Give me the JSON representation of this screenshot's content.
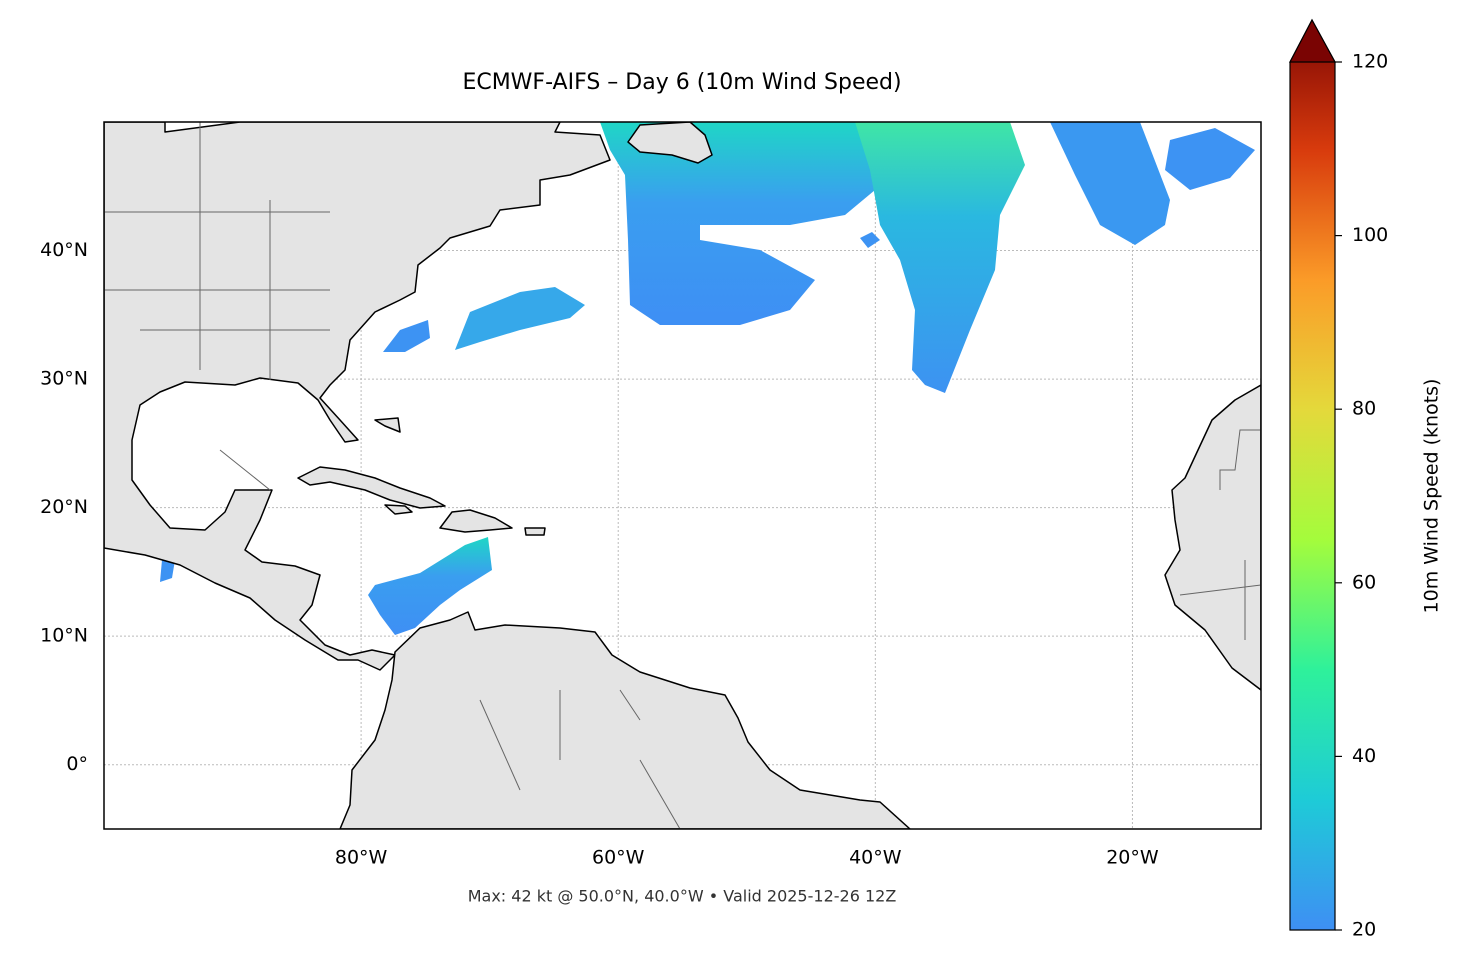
{
  "map": {
    "title": "ECMWF-AIFS – Day 6 (10m Wind Speed)",
    "xlim": [
      -100,
      -10
    ],
    "ylim": [
      -5,
      50
    ],
    "xticks": [
      {
        "value": -80,
        "label": "80°W"
      },
      {
        "value": -60,
        "label": "60°W"
      },
      {
        "value": -40,
        "label": "40°W"
      },
      {
        "value": -20,
        "label": "20°W"
      }
    ],
    "yticks": [
      {
        "value": 0,
        "label": "0°"
      },
      {
        "value": 10,
        "label": "10°N"
      },
      {
        "value": 20,
        "label": "20°N"
      },
      {
        "value": 30,
        "label": "30°N"
      },
      {
        "value": 40,
        "label": "40°N"
      }
    ],
    "grid": true,
    "colorbar": {
      "label": "10m Wind Speed (knots)",
      "lim": [
        20,
        120
      ],
      "ticks": [
        20,
        40,
        60,
        80,
        100,
        120
      ],
      "colormap": [
        "#3e8ff4",
        "#1ecbd7",
        "#2ef19b",
        "#a4fc3c",
        "#e4d93b",
        "#fb9b28",
        "#d83b0d",
        "#7a0403"
      ]
    },
    "footer": "Max: 42 kt @ 50.0°N, 40.0°W • Valid 2025-12-26 12Z"
  }
}
